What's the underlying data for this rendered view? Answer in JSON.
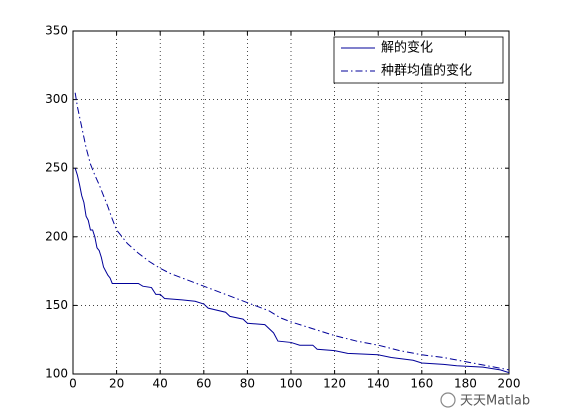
{
  "chart_data": {
    "type": "line",
    "xlim": [
      0,
      200
    ],
    "ylim": [
      100,
      350
    ],
    "xticks": [
      0,
      20,
      40,
      60,
      80,
      100,
      120,
      140,
      160,
      180,
      200
    ],
    "yticks": [
      100,
      150,
      200,
      250,
      300,
      350
    ],
    "grid": true,
    "legend": "upper right",
    "series": [
      {
        "name": "解的变化",
        "color": "#000099",
        "style": "solid",
        "x": [
          1,
          2,
          3,
          4,
          5,
          6,
          7,
          8,
          9,
          10,
          11,
          12,
          13,
          14,
          15,
          16,
          17,
          18,
          20,
          30,
          32,
          36,
          38,
          40,
          42,
          50,
          56,
          60,
          62,
          70,
          72,
          78,
          80,
          88,
          92,
          94,
          100,
          104,
          110,
          112,
          120,
          126,
          140,
          146,
          156,
          160,
          170,
          176,
          188,
          196,
          200
        ],
        "values": [
          250,
          245,
          238,
          230,
          225,
          215,
          212,
          205,
          205,
          200,
          192,
          190,
          185,
          178,
          175,
          172,
          170,
          166,
          166,
          166,
          164,
          163,
          158,
          158,
          155,
          154,
          153,
          151,
          148,
          145,
          142,
          140,
          137,
          136,
          130,
          124,
          123,
          121,
          121,
          118,
          117,
          115,
          114,
          112,
          110,
          108,
          107,
          106,
          105,
          103,
          101
        ]
      },
      {
        "name": "种群均值的变化",
        "color": "#000099",
        "style": "dashdot",
        "x": [
          1,
          2,
          4,
          6,
          8,
          10,
          12,
          14,
          16,
          18,
          20,
          25,
          30,
          35,
          40,
          45,
          50,
          60,
          70,
          80,
          90,
          95,
          100,
          110,
          120,
          130,
          140,
          150,
          160,
          170,
          180,
          190,
          200
        ],
        "values": [
          305,
          295,
          280,
          265,
          253,
          245,
          238,
          230,
          222,
          213,
          205,
          195,
          188,
          182,
          177,
          173,
          170,
          164,
          158,
          152,
          146,
          141,
          138,
          133,
          128,
          124,
          121,
          117,
          114,
          112,
          109,
          106,
          103
        ]
      }
    ]
  },
  "watermark": "天天Matlab"
}
